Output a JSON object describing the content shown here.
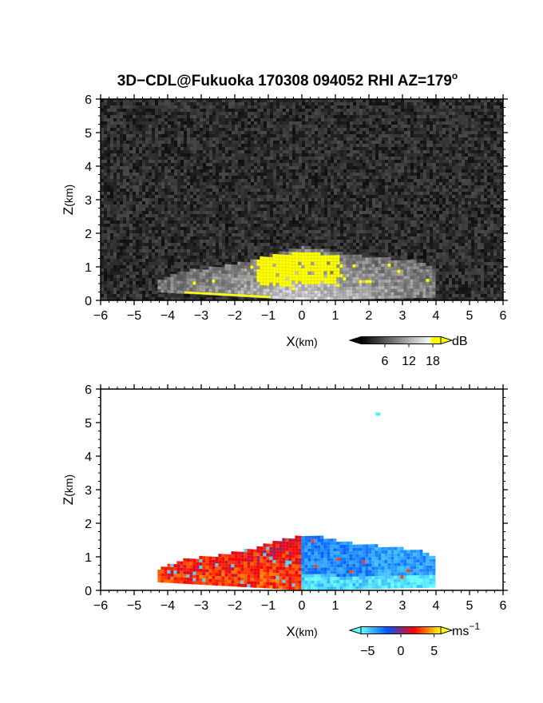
{
  "figure": {
    "title": "3D−CDL@Fukuoka 170308 094052 RHI AZ=179",
    "title_superscript": "o"
  },
  "chart_data": [
    {
      "type": "heatmap",
      "field": "signal intensity",
      "xlabel_main": "X",
      "xlabel_unit": "(km)",
      "ylabel_main": "Z",
      "ylabel_unit": "(km)",
      "xlim": [
        -6,
        6
      ],
      "ylim": [
        0,
        6
      ],
      "x_ticks": [
        "−6",
        "−5",
        "−4",
        "−3",
        "−2",
        "−1",
        "0",
        "1",
        "2",
        "3",
        "4",
        "5",
        "6"
      ],
      "y_ticks": [
        "0",
        "1",
        "2",
        "3",
        "4",
        "5",
        "6"
      ],
      "colorbar": {
        "unit": "dB",
        "tick_labels": [
          "6",
          "12",
          "18"
        ],
        "range": [
          0,
          20
        ],
        "colors": [
          "#000000",
          "#ffffff",
          "#ffff00"
        ]
      },
      "echo_region": {
        "x_extent_km": [
          -4.3,
          3.9
        ],
        "top_km": [
          [
            -4.3,
            0.55
          ],
          [
            -3.5,
            0.85
          ],
          [
            -2.5,
            0.95
          ],
          [
            -1.5,
            1.15
          ],
          [
            -0.5,
            1.45
          ],
          [
            0,
            1.55
          ],
          [
            0.5,
            1.5
          ],
          [
            1.5,
            1.3
          ],
          [
            2.5,
            1.2
          ],
          [
            3.5,
            1.1
          ],
          [
            3.9,
            0.9
          ]
        ],
        "saturated_core_km": {
          "x": [
            -1.4,
            1.1
          ],
          "z": [
            0.4,
            1.4
          ]
        }
      }
    },
    {
      "type": "heatmap",
      "field": "Doppler radial velocity",
      "xlabel_main": "X",
      "xlabel_unit": "(km)",
      "ylabel_main": "Z",
      "ylabel_unit": "(km)",
      "xlim": [
        -6,
        6
      ],
      "ylim": [
        0,
        6
      ],
      "x_ticks": [
        "−6",
        "−5",
        "−4",
        "−3",
        "−2",
        "−1",
        "0",
        "1",
        "2",
        "3",
        "4",
        "5",
        "6"
      ],
      "y_ticks": [
        "0",
        "1",
        "2",
        "3",
        "4",
        "5",
        "6"
      ],
      "colorbar": {
        "unit": "ms",
        "unit_exponent": "−1",
        "tick_labels": [
          "−5",
          "0",
          "5"
        ],
        "range": [
          -6,
          6
        ],
        "colors": [
          "#66ffff",
          "#0055ff",
          "#ff0000",
          "#ffff00"
        ]
      },
      "velocity_field_ms": {
        "x_extent_km": [
          -4.3,
          3.9
        ],
        "approaching_x_km": [
          -4.3,
          -0.1
        ],
        "approaching_value": 2.5,
        "receding_x_km": [
          -0.1,
          3.9
        ],
        "receding_value": -4
      },
      "isolated_echo": {
        "x": 2.2,
        "z": 5.3,
        "value": -6
      }
    }
  ]
}
